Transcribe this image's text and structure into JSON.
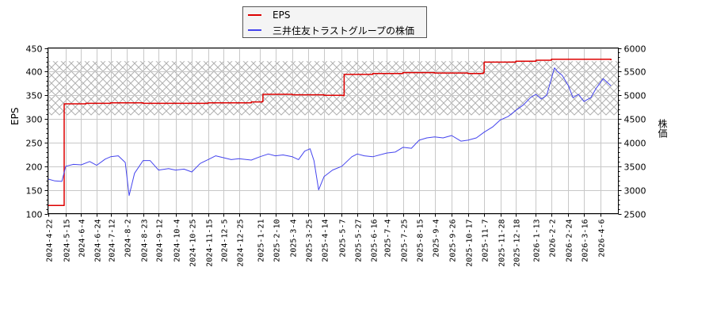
{
  "legend": {
    "items": [
      {
        "label": "EPS",
        "color": "#dd0000"
      },
      {
        "label": "三井住友トラストグループの株価",
        "color": "#4444ee"
      }
    ]
  },
  "chart_data": {
    "type": "line",
    "title": "",
    "xlabel": "",
    "ylabel": "EPS",
    "y2label": "株価",
    "ylim": [
      100,
      450
    ],
    "y2lim": [
      2500,
      6000
    ],
    "yticks": [
      100,
      150,
      200,
      250,
      300,
      350,
      400,
      450
    ],
    "y2ticks": [
      2500,
      3000,
      3500,
      4000,
      4500,
      5000,
      5500,
      6000
    ],
    "grid": true,
    "legend_position": "top-center",
    "x_tick_labels": [
      "2024-4-22",
      "2024-5-15",
      "2024-6-4",
      "2024-6-24",
      "2024-7-12",
      "2024-8-2",
      "2024-8-23",
      "2024-9-12",
      "2024-10-4",
      "2024-10-25",
      "2024-11-15",
      "2024-12-5",
      "2024-12-25",
      "2025-1-21",
      "2025-2-10",
      "2025-3-4",
      "2025-3-25",
      "2025-4-14",
      "2025-5-7",
      "2025-5-27",
      "2025-6-16",
      "2025-7-4",
      "2025-7-25",
      "2025-8-15",
      "2025-9-4",
      "2025-9-26",
      "2025-10-17",
      "2025-11-7",
      "2025-11-28",
      "2025-12-18",
      "2026-1-13",
      "2026-2-2",
      "2026-2-24",
      "2026-3-16",
      "2026-4-6"
    ],
    "shaded_band": {
      "y2_from": 4580,
      "y2_to": 5720,
      "style": "crosshatch"
    },
    "series": [
      {
        "name": "EPS",
        "axis": "left",
        "color": "#dd0000",
        "step": true,
        "points": [
          [
            "2024-4-22",
            117
          ],
          [
            "2024-5-12",
            117
          ],
          [
            "2024-5-13",
            332
          ],
          [
            "2024-6-10",
            333
          ],
          [
            "2024-7-12",
            334
          ],
          [
            "2024-8-23",
            333
          ],
          [
            "2024-10-4",
            333
          ],
          [
            "2024-11-15",
            334
          ],
          [
            "2025-1-10",
            336
          ],
          [
            "2025-1-24",
            337
          ],
          [
            "2025-1-25",
            352
          ],
          [
            "2025-3-4",
            351
          ],
          [
            "2025-4-14",
            350
          ],
          [
            "2025-5-9",
            349
          ],
          [
            "2025-5-10",
            394
          ],
          [
            "2025-6-16",
            396
          ],
          [
            "2025-7-25",
            398
          ],
          [
            "2025-9-4",
            397
          ],
          [
            "2025-10-17",
            396
          ],
          [
            "2025-11-6",
            398
          ],
          [
            "2025-11-7",
            420
          ],
          [
            "2025-12-18",
            422
          ],
          [
            "2026-1-13",
            424
          ],
          [
            "2026-2-2",
            426
          ],
          [
            "2026-3-16",
            426
          ],
          [
            "2026-4-20",
            424
          ]
        ]
      },
      {
        "name": "三井住友トラストグループの株価",
        "axis": "right",
        "color": "#4444ee",
        "points": [
          [
            "2024-4-22",
            3230
          ],
          [
            "2024-5-1",
            3190
          ],
          [
            "2024-5-10",
            3180
          ],
          [
            "2024-5-15",
            3500
          ],
          [
            "2024-5-25",
            3540
          ],
          [
            "2024-6-4",
            3530
          ],
          [
            "2024-6-15",
            3600
          ],
          [
            "2024-6-24",
            3520
          ],
          [
            "2024-7-5",
            3650
          ],
          [
            "2024-7-12",
            3700
          ],
          [
            "2024-7-22",
            3720
          ],
          [
            "2024-7-31",
            3580
          ],
          [
            "2024-8-5",
            2880
          ],
          [
            "2024-8-12",
            3350
          ],
          [
            "2024-8-23",
            3620
          ],
          [
            "2024-9-1",
            3620
          ],
          [
            "2024-9-12",
            3420
          ],
          [
            "2024-9-25",
            3450
          ],
          [
            "2024-10-4",
            3420
          ],
          [
            "2024-10-15",
            3440
          ],
          [
            "2024-10-25",
            3380
          ],
          [
            "2024-11-5",
            3560
          ],
          [
            "2024-11-15",
            3640
          ],
          [
            "2024-11-25",
            3720
          ],
          [
            "2024-12-5",
            3680
          ],
          [
            "2024-12-15",
            3640
          ],
          [
            "2024-12-25",
            3660
          ],
          [
            "2025-1-10",
            3630
          ],
          [
            "2025-1-21",
            3700
          ],
          [
            "2025-2-1",
            3760
          ],
          [
            "2025-2-10",
            3720
          ],
          [
            "2025-2-20",
            3740
          ],
          [
            "2025-3-4",
            3700
          ],
          [
            "2025-3-12",
            3640
          ],
          [
            "2025-3-20",
            3820
          ],
          [
            "2025-3-27",
            3870
          ],
          [
            "2025-4-1",
            3620
          ],
          [
            "2025-4-7",
            3000
          ],
          [
            "2025-4-14",
            3280
          ],
          [
            "2025-4-25",
            3420
          ],
          [
            "2025-5-7",
            3500
          ],
          [
            "2025-5-20",
            3700
          ],
          [
            "2025-5-27",
            3760
          ],
          [
            "2025-6-5",
            3720
          ],
          [
            "2025-6-16",
            3700
          ],
          [
            "2025-7-4",
            3780
          ],
          [
            "2025-7-15",
            3800
          ],
          [
            "2025-7-25",
            3900
          ],
          [
            "2025-8-5",
            3880
          ],
          [
            "2025-8-15",
            4050
          ],
          [
            "2025-8-25",
            4100
          ],
          [
            "2025-9-4",
            4120
          ],
          [
            "2025-9-15",
            4100
          ],
          [
            "2025-9-26",
            4150
          ],
          [
            "2025-10-8",
            4030
          ],
          [
            "2025-10-17",
            4050
          ],
          [
            "2025-10-28",
            4100
          ],
          [
            "2025-11-7",
            4220
          ],
          [
            "2025-11-18",
            4330
          ],
          [
            "2025-11-28",
            4480
          ],
          [
            "2025-12-8",
            4550
          ],
          [
            "2025-12-18",
            4680
          ],
          [
            "2025-12-28",
            4800
          ],
          [
            "2026-1-6",
            4950
          ],
          [
            "2026-1-13",
            5020
          ],
          [
            "2026-1-20",
            4920
          ],
          [
            "2026-1-27",
            5000
          ],
          [
            "2026-2-2",
            5350
          ],
          [
            "2026-2-6",
            5580
          ],
          [
            "2026-2-10",
            5500
          ],
          [
            "2026-2-16",
            5420
          ],
          [
            "2026-2-24",
            5200
          ],
          [
            "2026-3-2",
            4950
          ],
          [
            "2026-3-9",
            5020
          ],
          [
            "2026-3-16",
            4870
          ],
          [
            "2026-3-25",
            4950
          ],
          [
            "2026-4-1",
            5150
          ],
          [
            "2026-4-10",
            5350
          ],
          [
            "2026-4-20",
            5200
          ]
        ]
      }
    ]
  }
}
